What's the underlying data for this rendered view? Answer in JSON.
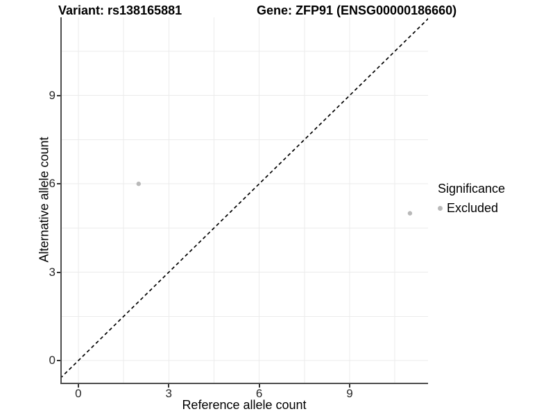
{
  "titles": {
    "variant": "Variant: rs138165881",
    "gene": "Gene: ZFP91 (ENSG00000186660)"
  },
  "legend": {
    "title": "Significance",
    "items": [
      {
        "label": "Excluded",
        "color": "#b9b9b9"
      }
    ]
  },
  "chart_data": {
    "type": "scatter",
    "title": "Variant: rs138165881 — Gene: ZFP91 (ENSG00000186660)",
    "xlabel": "Reference allele count",
    "ylabel": "Alternative allele count",
    "xlim": [
      -0.55,
      11.6
    ],
    "ylim": [
      -0.75,
      11.65
    ],
    "x_ticks": [
      0,
      3,
      6,
      9
    ],
    "y_ticks": [
      0,
      3,
      6,
      9
    ],
    "grid": {
      "major": [
        0,
        3,
        6,
        9
      ],
      "minor": [
        1.5,
        4.5,
        7.5,
        10.5
      ],
      "color": "#ebebeb",
      "on": true
    },
    "identity_line": {
      "type": "y=x",
      "style": "dashed",
      "color": "#000000"
    },
    "series": [
      {
        "name": "Excluded",
        "color": "#b9b9b9",
        "points": [
          [
            2,
            6
          ],
          [
            11,
            5
          ]
        ]
      }
    ],
    "legend_position": "right"
  },
  "colors": {
    "background": "#ffffff",
    "axis_line": "#4d4d4d",
    "tick": "#333333",
    "grid": "#ebebeb",
    "point": "#b9b9b9",
    "identity": "#000000"
  }
}
